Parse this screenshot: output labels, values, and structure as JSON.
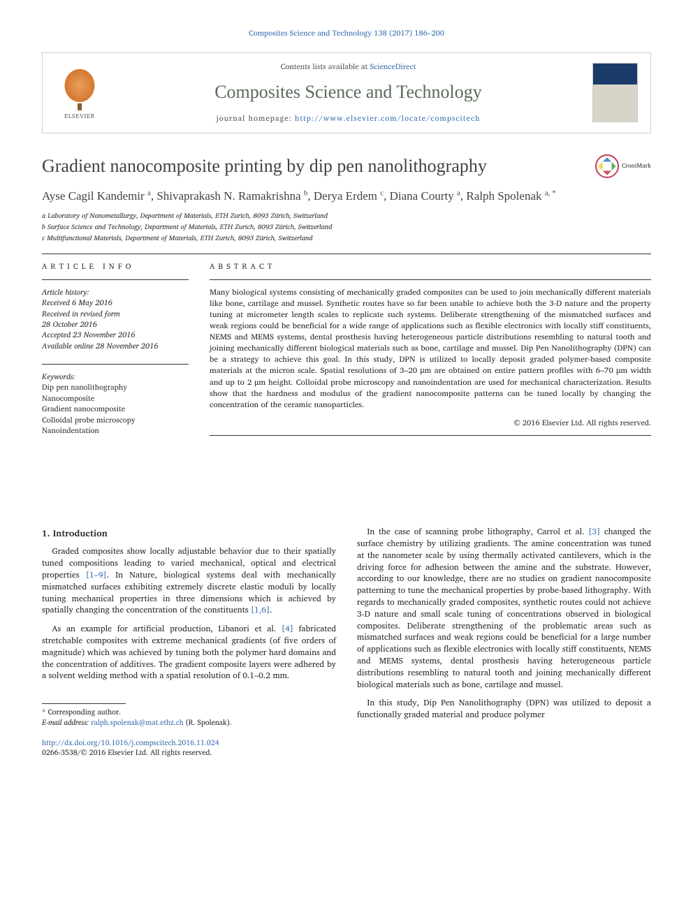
{
  "colors": {
    "link": "#3a6fb0",
    "text": "#2a2a2a",
    "title": "#424242",
    "journal": "#5a6a5a",
    "rule": "#333333",
    "background": "#ffffff"
  },
  "typography": {
    "body_family": "Charis SIL, Georgia, serif",
    "title_family": "Times New Roman, Gulliver, serif",
    "body_size_pt": 9,
    "title_size_pt": 20,
    "journal_size_pt": 20,
    "abstract_size_pt": 8.5
  },
  "citation": "Composites Science and Technology 138 (2017) 186–200",
  "header": {
    "publisher": "ELSEVIER",
    "contents_prefix": "Contents lists available at ",
    "contents_link": "ScienceDirect",
    "journal_name": "Composites Science and Technology",
    "homepage_label": "journal homepage: ",
    "homepage_url": "http://www.elsevier.com/locate/compscitech"
  },
  "crossmark_label": "CrossMark",
  "article": {
    "title": "Gradient nanocomposite printing by dip pen nanolithography",
    "authors_html": "Ayse Cagil Kandemir <sup>a</sup>, Shivaprakash N. Ramakrishna <sup>b</sup>, Derya Erdem <sup>c</sup>, Diana Courty <sup>a</sup>, Ralph Spolenak <sup>a, *</sup>",
    "affiliations": [
      "a Laboratory of Nanometallurgy, Department of Materials, ETH Zurich, 8093 Zürich, Switzerland",
      "b Surface Science and Technology, Department of Materials, ETH Zurich, 8093 Zürich, Switzerland",
      "c Multifunctional Materials, Department of Materials, ETH Zurich, 8093 Zürich, Switzerland"
    ]
  },
  "info": {
    "heading": "ARTICLE INFO",
    "history_label": "Article history:",
    "history": [
      "Received 6 May 2016",
      "Received in revised form",
      "28 October 2016",
      "Accepted 23 November 2016",
      "Available online 28 November 2016"
    ],
    "keywords_label": "Keywords:",
    "keywords": [
      "Dip pen nanolithography",
      "Nanocomposite",
      "Gradient nanocomposite",
      "Colloidal probe microscopy",
      "Nanoindentation"
    ]
  },
  "abstract": {
    "heading": "ABSTRACT",
    "text": "Many biological systems consisting of mechanically graded composites can be used to join mechanically different materials like bone, cartilage and mussel. Synthetic routes have so far been unable to achieve both the 3-D nature and the property tuning at micrometer length scales to replicate such systems. Deliberate strengthening of the mismatched surfaces and weak regions could be beneficial for a wide range of applications such as flexible electronics with locally stiff constituents, NEMS and MEMS systems, dental prosthesis having heterogeneous particle distributions resembling to natural tooth and joining mechanically different biological materials such as bone, cartilage and mussel. Dip Pen Nanolithography (DPN) can be a strategy to achieve this goal. In this study, DPN is utilized to locally deposit graded polymer-based composite materials at the micron scale. Spatial resolutions of 3–20 μm are obtained on entire pattern profiles with 6–70 μm width and up to 2 μm height. Colloidal probe microscopy and nanoindentation are used for mechanical characterization. Results show that the hardness and modulus of the gradient nanocomposite patterns can be tuned locally by changing the concentration of the ceramic nanoparticles.",
    "copyright": "© 2016 Elsevier Ltd. All rights reserved."
  },
  "body": {
    "section_heading": "1. Introduction",
    "p1": "Graded composites show locally adjustable behavior due to their spatially tuned compositions leading to varied mechanical, optical and electrical properties [1–9]. In Nature, biological systems deal with mechanically mismatched surfaces exhibiting extremely discrete elastic moduli by locally tuning mechanical properties in three dimensions which is achieved by spatially changing the concentration of the constituents [1,6].",
    "p2": "As an example for artificial production, Libanori et al. [4] fabricated stretchable composites with extreme mechanical gradients (of five orders of magnitude) which was achieved by tuning both the polymer hard domains and the concentration of additives. The gradient composite layers were adhered by a solvent welding method with a spatial resolution of 0.1–0.2 mm.",
    "p3": "In the case of scanning probe lithography, Carrol et al. [3] changed the surface chemistry by utilizing gradients. The amine concentration was tuned at the nanometer scale by using thermally activated cantilevers, which is the driving force for adhesion between the amine and the substrate. However, according to our knowledge, there are no studies on gradient nanocomposite patterning to tune the mechanical properties by probe-based lithography. With regards to mechanically graded composites, synthetic routes could not achieve 3-D nature and small scale tuning of concentrations observed in biological composites. Deliberate strengthening of the problematic areas such as mismatched surfaces and weak regions could be beneficial for a large number of applications such as flexible electronics with locally stiff constituents, NEMS and MEMS systems, dental prosthesis having heterogeneous particle distributions resembling to natural tooth and joining mechanically different biological materials such as bone, cartilage and mussel.",
    "p4": "In this study, Dip Pen Nanolithography (DPN) was utilized to deposit a functionally graded material and produce polymer",
    "ref_links": [
      "[1–9]",
      "[1,6]",
      "[4]",
      "[3]"
    ]
  },
  "footer": {
    "corr_label": "* Corresponding author.",
    "email_label": "E-mail address: ",
    "email": "ralph.spolenak@mat.ethz.ch",
    "email_name": " (R. Spolenak).",
    "doi": "http://dx.doi.org/10.1016/j.compscitech.2016.11.024",
    "issn_line": "0266-3538/© 2016 Elsevier Ltd. All rights reserved."
  }
}
